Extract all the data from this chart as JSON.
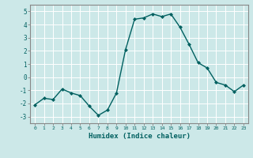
{
  "x": [
    0,
    1,
    2,
    3,
    4,
    5,
    6,
    7,
    8,
    9,
    10,
    11,
    12,
    13,
    14,
    15,
    16,
    17,
    18,
    19,
    20,
    21,
    22,
    23
  ],
  "y": [
    -2.1,
    -1.6,
    -1.7,
    -0.9,
    -1.2,
    -1.4,
    -2.2,
    -2.9,
    -2.5,
    -1.2,
    2.1,
    4.4,
    4.5,
    4.8,
    4.6,
    4.8,
    3.8,
    2.5,
    1.1,
    0.7,
    -0.4,
    -0.6,
    -1.1,
    -0.6
  ],
  "xlabel": "Humidex (Indice chaleur)",
  "xlim": [
    -0.5,
    23.5
  ],
  "ylim": [
    -3.5,
    5.5
  ],
  "yticks": [
    -3,
    -2,
    -1,
    0,
    1,
    2,
    3,
    4,
    5
  ],
  "xticks": [
    0,
    1,
    2,
    3,
    4,
    5,
    6,
    7,
    8,
    9,
    10,
    11,
    12,
    13,
    14,
    15,
    16,
    17,
    18,
    19,
    20,
    21,
    22,
    23
  ],
  "line_color": "#006060",
  "marker_color": "#006060",
  "grid_color": "#ffffff",
  "border_color": "#888888",
  "axes_bg": "#cce8e8",
  "fig_bg": "#cce8e8",
  "tick_color": "#006060",
  "label_color": "#006060"
}
